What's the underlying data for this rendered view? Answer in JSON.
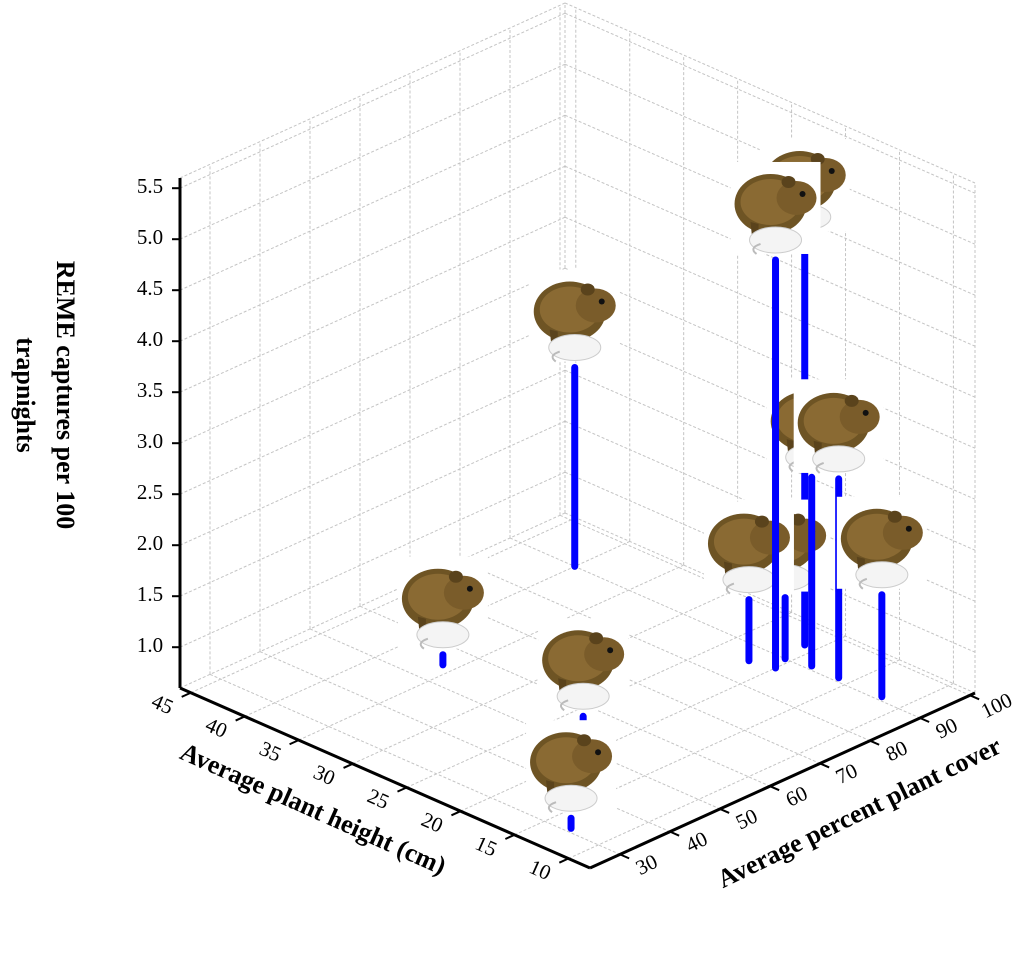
{
  "chart_data": {
    "type": "scatter3d",
    "x_label": "Average plant height (cm)",
    "y_label": "Average percent plant cover",
    "z_label": "REME captures per 100 trapnights",
    "x": [
      40,
      36,
      23,
      13,
      20,
      21,
      22,
      20.5,
      18.5,
      16,
      12
    ],
    "y": [
      90,
      55,
      55,
      31,
      87,
      95,
      86,
      90,
      91,
      91,
      91
    ],
    "z": [
      2.55,
      0.7,
      0.7,
      0.7,
      4.6,
      4.6,
      1.2,
      1.2,
      2.45,
      2.55,
      1.6
    ],
    "color": "#0000ff",
    "xlim": [
      46,
      8
    ],
    "ylim": [
      24,
      101
    ],
    "zlim": [
      0.6,
      5.6
    ],
    "xticks": [
      45,
      40,
      35,
      30,
      25,
      20,
      15,
      10
    ],
    "yticks": [
      30,
      40,
      50,
      60,
      70,
      80,
      90,
      100
    ],
    "zticks": [
      {
        "value": 1,
        "label": "1.0"
      },
      {
        "value": 1.5,
        "label": "1.5"
      },
      {
        "value": 2,
        "label": "2.0"
      },
      {
        "value": 2.5,
        "label": "2.5"
      },
      {
        "value": 3,
        "label": "3.0"
      },
      {
        "value": 3.5,
        "label": "3.5"
      },
      {
        "value": 4,
        "label": "4.0"
      },
      {
        "value": 4.5,
        "label": "4.5"
      },
      {
        "value": 5,
        "label": "5.0"
      },
      {
        "value": 5.5,
        "label": "5.5"
      }
    ],
    "grid": true
  }
}
